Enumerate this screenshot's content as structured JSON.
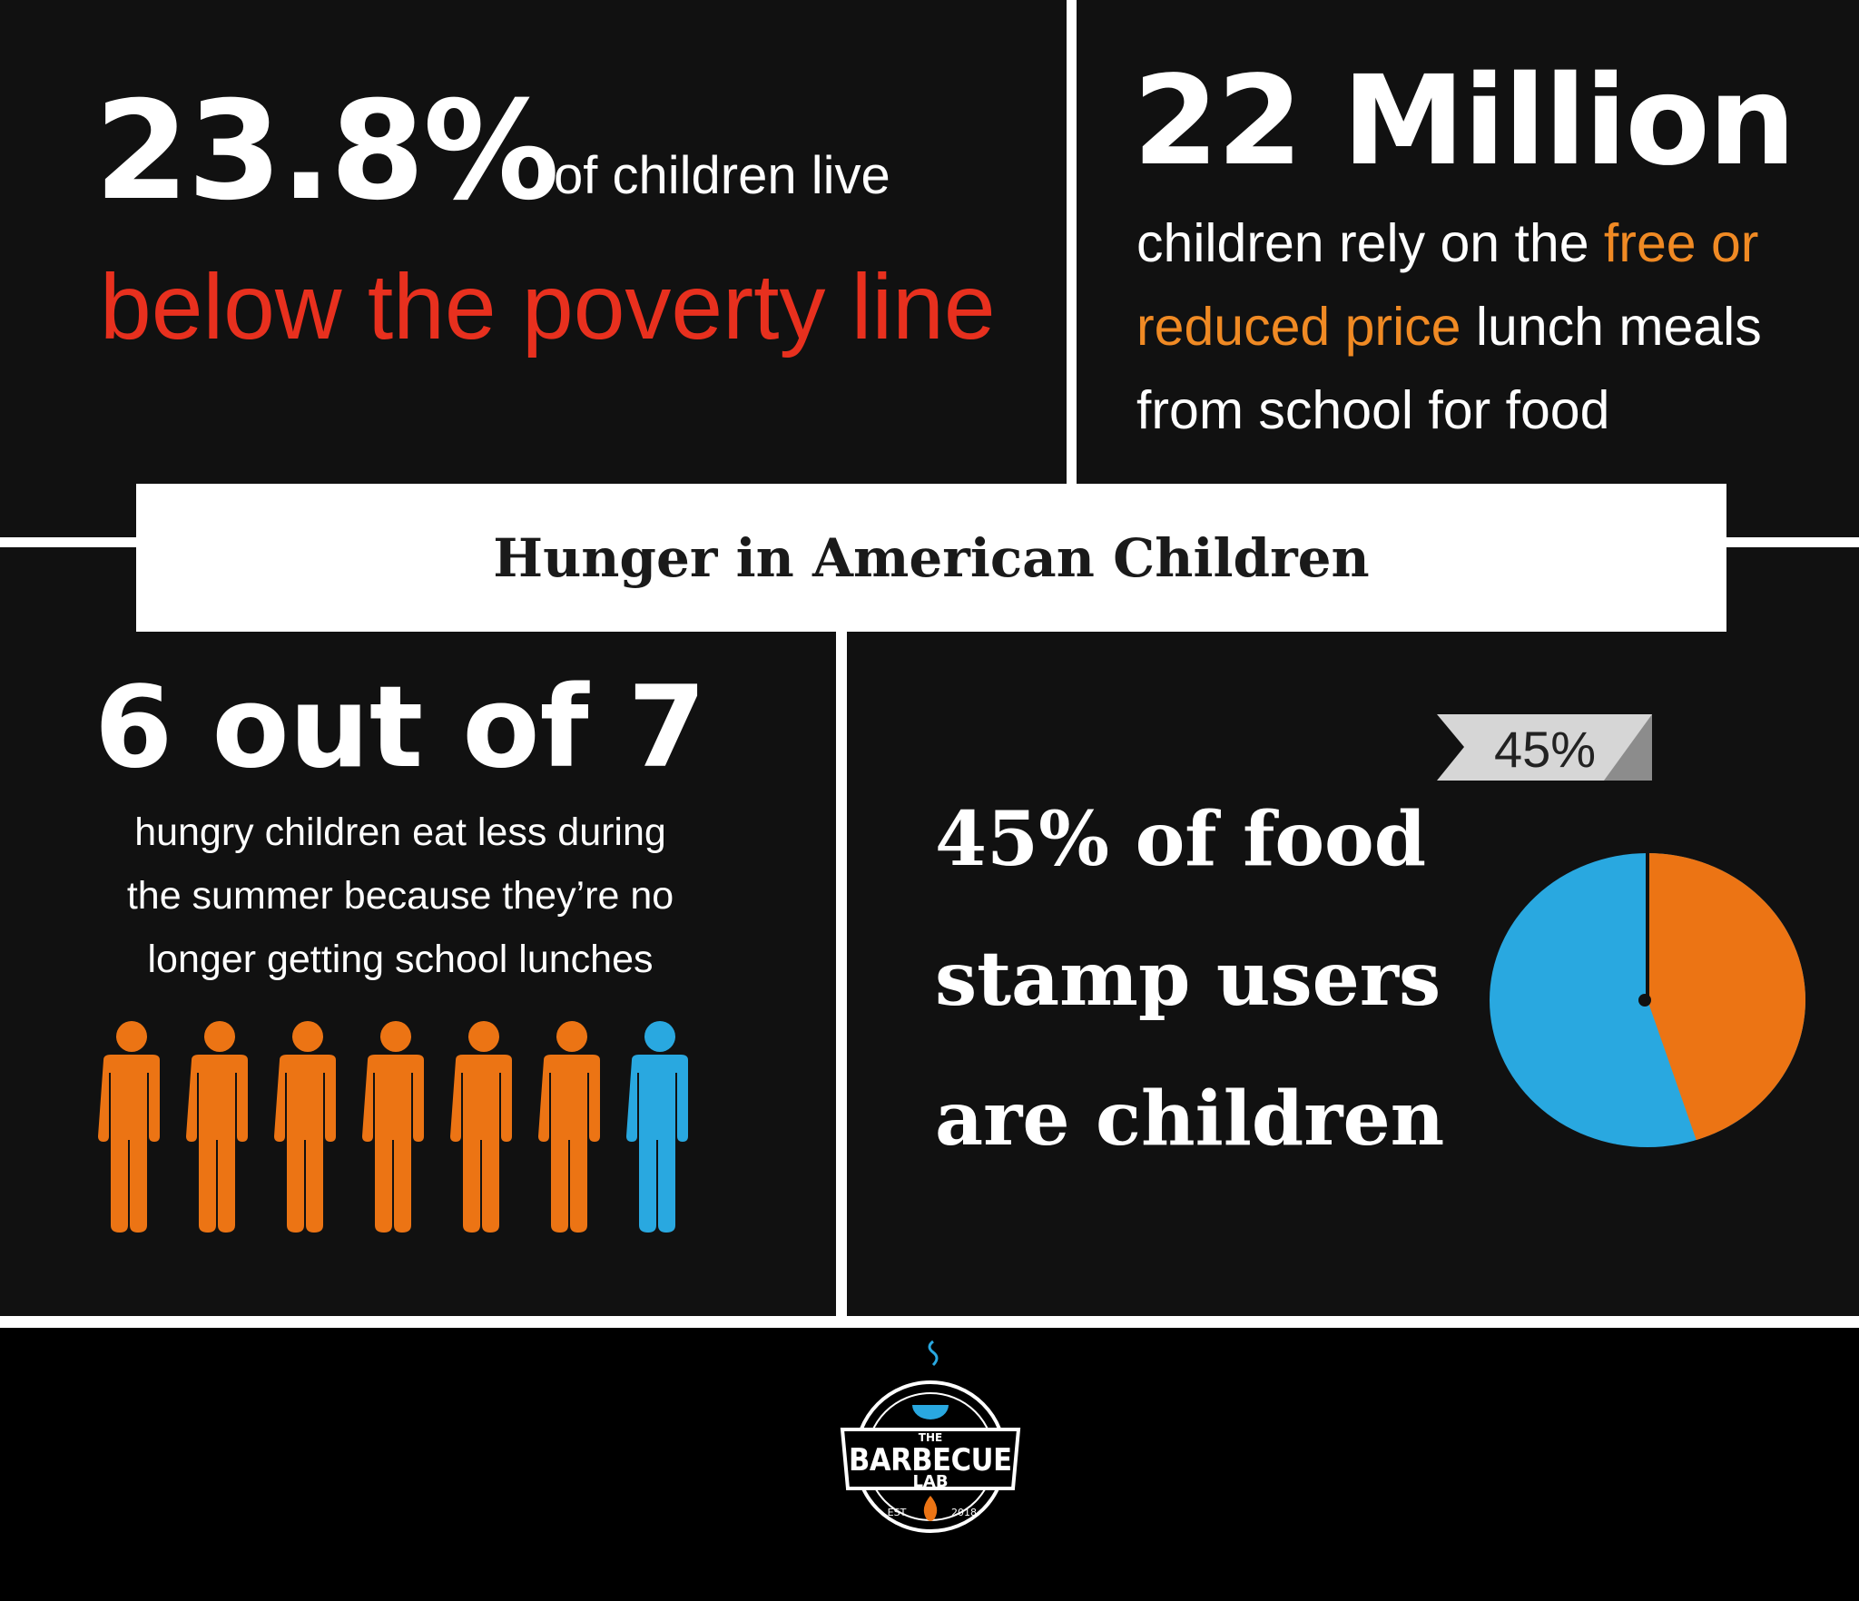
{
  "stat1": {
    "value": "23.8%",
    "text": "of children live",
    "highlight": "below the poverty line"
  },
  "stat2": {
    "value": "22 Million",
    "line1_a": "children rely on the ",
    "line1_b": "free or",
    "line2_a": "reduced price",
    "line2_b": " lunch meals",
    "line3": "from school for food"
  },
  "title": "Hunger in American Children",
  "stat3": {
    "value": "6 out of 7",
    "lines": [
      "hungry children eat less during",
      "the summer because they’re no",
      "longer getting school lunches"
    ],
    "people_total": 7,
    "people_highlighted": 6
  },
  "stat4": {
    "lines": [
      "45% of food",
      "stamp users",
      "are children"
    ]
  },
  "chart_data": {
    "type": "pie",
    "values": [
      45,
      55
    ],
    "label": "45%",
    "colors": [
      "#ec7414",
      "#29a8e0"
    ]
  },
  "logo": {
    "text": "THE BARBECUE LAB EST 2018"
  },
  "colors": {
    "red": "#e8301e",
    "orange": "#f08a24",
    "figure_orange": "#ec7414",
    "figure_blue": "#29a8e0",
    "background": "#111111"
  }
}
